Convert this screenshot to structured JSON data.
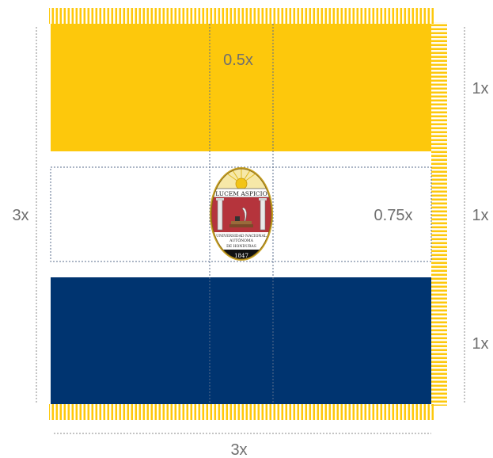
{
  "flag": {
    "colors": {
      "gold": "#fdc80c",
      "white": "#ffffff",
      "blue": "#003470",
      "fringe": "#fdc80c"
    },
    "stripes": [
      "gold",
      "white",
      "blue"
    ],
    "fringe": true
  },
  "dimensions": {
    "total_height_label": "3x",
    "total_width_label": "3x",
    "stripe_labels": [
      "1x",
      "1x",
      "1x"
    ],
    "emblem_width_label": "0.5x",
    "emblem_height_label": "0.75x"
  },
  "emblem": {
    "icon": "university-seal-icon",
    "motto": "LUCEM ASPICIO",
    "name_line1": "UNIVERSIDAD NACIONAL",
    "name_line2": "AUTÓNOMA",
    "name_line3": "DE HONDURAS",
    "year": "1847"
  }
}
